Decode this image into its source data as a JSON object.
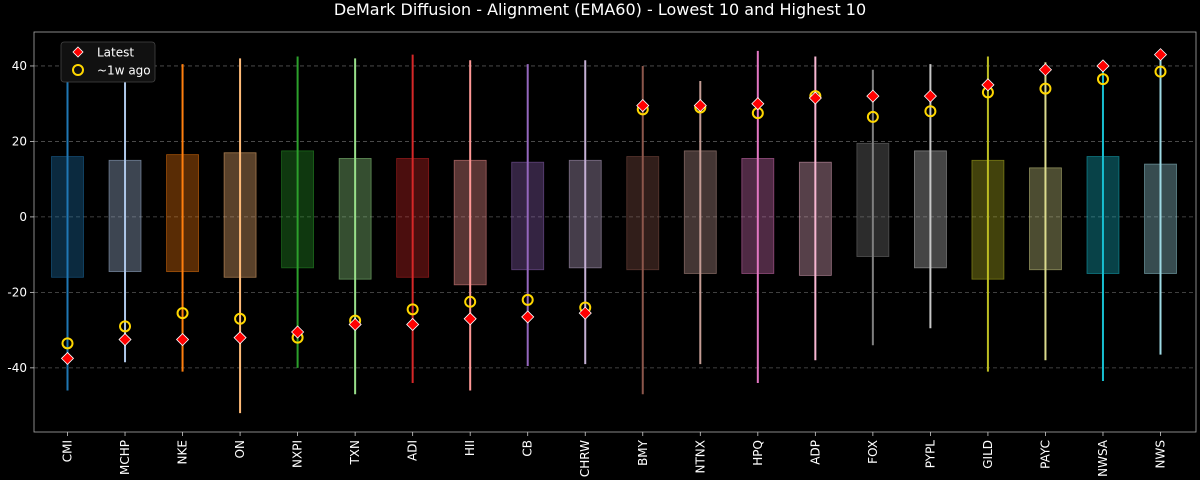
{
  "chart_data": {
    "type": "range-box-dot",
    "title": "DeMark Diffusion - Alignment (EMA60) - Lowest 10 and Highest 10",
    "xlabel": "",
    "ylabel": "",
    "ylim": [
      -57,
      49
    ],
    "yticks": [
      -40,
      -20,
      0,
      20,
      40
    ],
    "grid": "horizontal dashed",
    "legend_position": "top-left",
    "legend": [
      {
        "label": "Latest",
        "marker": "red-diamond"
      },
      {
        "label": "~1w ago",
        "marker": "yellow-ring"
      }
    ],
    "categories": [
      "CMI",
      "MCHP",
      "NKE",
      "ON",
      "NXPI",
      "TXN",
      "ADI",
      "HII",
      "CB",
      "CHRW",
      "BMY",
      "NTNX",
      "HPQ",
      "ADP",
      "FOX",
      "PYPL",
      "GILD",
      "PAYC",
      "NWSA",
      "NWS"
    ],
    "colors": [
      "#1f77b4",
      "#aec7e8",
      "#ff7f0e",
      "#ffbb78",
      "#2ca02c",
      "#98df8a",
      "#d62728",
      "#ff9896",
      "#9467bd",
      "#c5b0d5",
      "#8c564b",
      "#c49c94",
      "#e377c2",
      "#f7b6d2",
      "#7f7f7f",
      "#c7c7c7",
      "#bcbd22",
      "#dbdb8d",
      "#17becf",
      "#9edae5"
    ],
    "range_min": [
      -46,
      -38.5,
      -41,
      -52,
      -40,
      -47,
      -44,
      -46,
      -39.5,
      -39,
      -47,
      -39,
      -44,
      -38,
      -34,
      -29.5,
      -41,
      -38,
      -43.5,
      -36.5
    ],
    "range_max": [
      41.5,
      42,
      40.5,
      42,
      42.5,
      42,
      43,
      41.5,
      40.5,
      41.5,
      40,
      36,
      44,
      42.5,
      39,
      40.5,
      42.5,
      41,
      41,
      44
    ],
    "box_low": [
      -16,
      -14.5,
      -14.5,
      -16,
      -13.5,
      -16.5,
      -16,
      -18,
      -14,
      -13.5,
      -14,
      -15,
      -15,
      -15.5,
      -10.5,
      -13.5,
      -16.5,
      -14,
      -15,
      -15
    ],
    "box_high": [
      16,
      15,
      16.5,
      17,
      17.5,
      15.5,
      15.5,
      15,
      14.5,
      15,
      16,
      17.5,
      15.5,
      14.5,
      19.5,
      17.5,
      15,
      13,
      16,
      14
    ],
    "latest": [
      -37.5,
      -32.5,
      -32.5,
      -32,
      -30.5,
      -28.5,
      -28.5,
      -27,
      -26.5,
      -25.5,
      29.5,
      29.5,
      30,
      31.5,
      32,
      32,
      35,
      39,
      40,
      43
    ],
    "week_ago": [
      -33.5,
      -29,
      -25.5,
      -27,
      -32,
      -27.5,
      -24.5,
      -22.5,
      -22,
      -24,
      28.5,
      29,
      27.5,
      32,
      26.5,
      28,
      33,
      34,
      36.5,
      38.5
    ]
  }
}
